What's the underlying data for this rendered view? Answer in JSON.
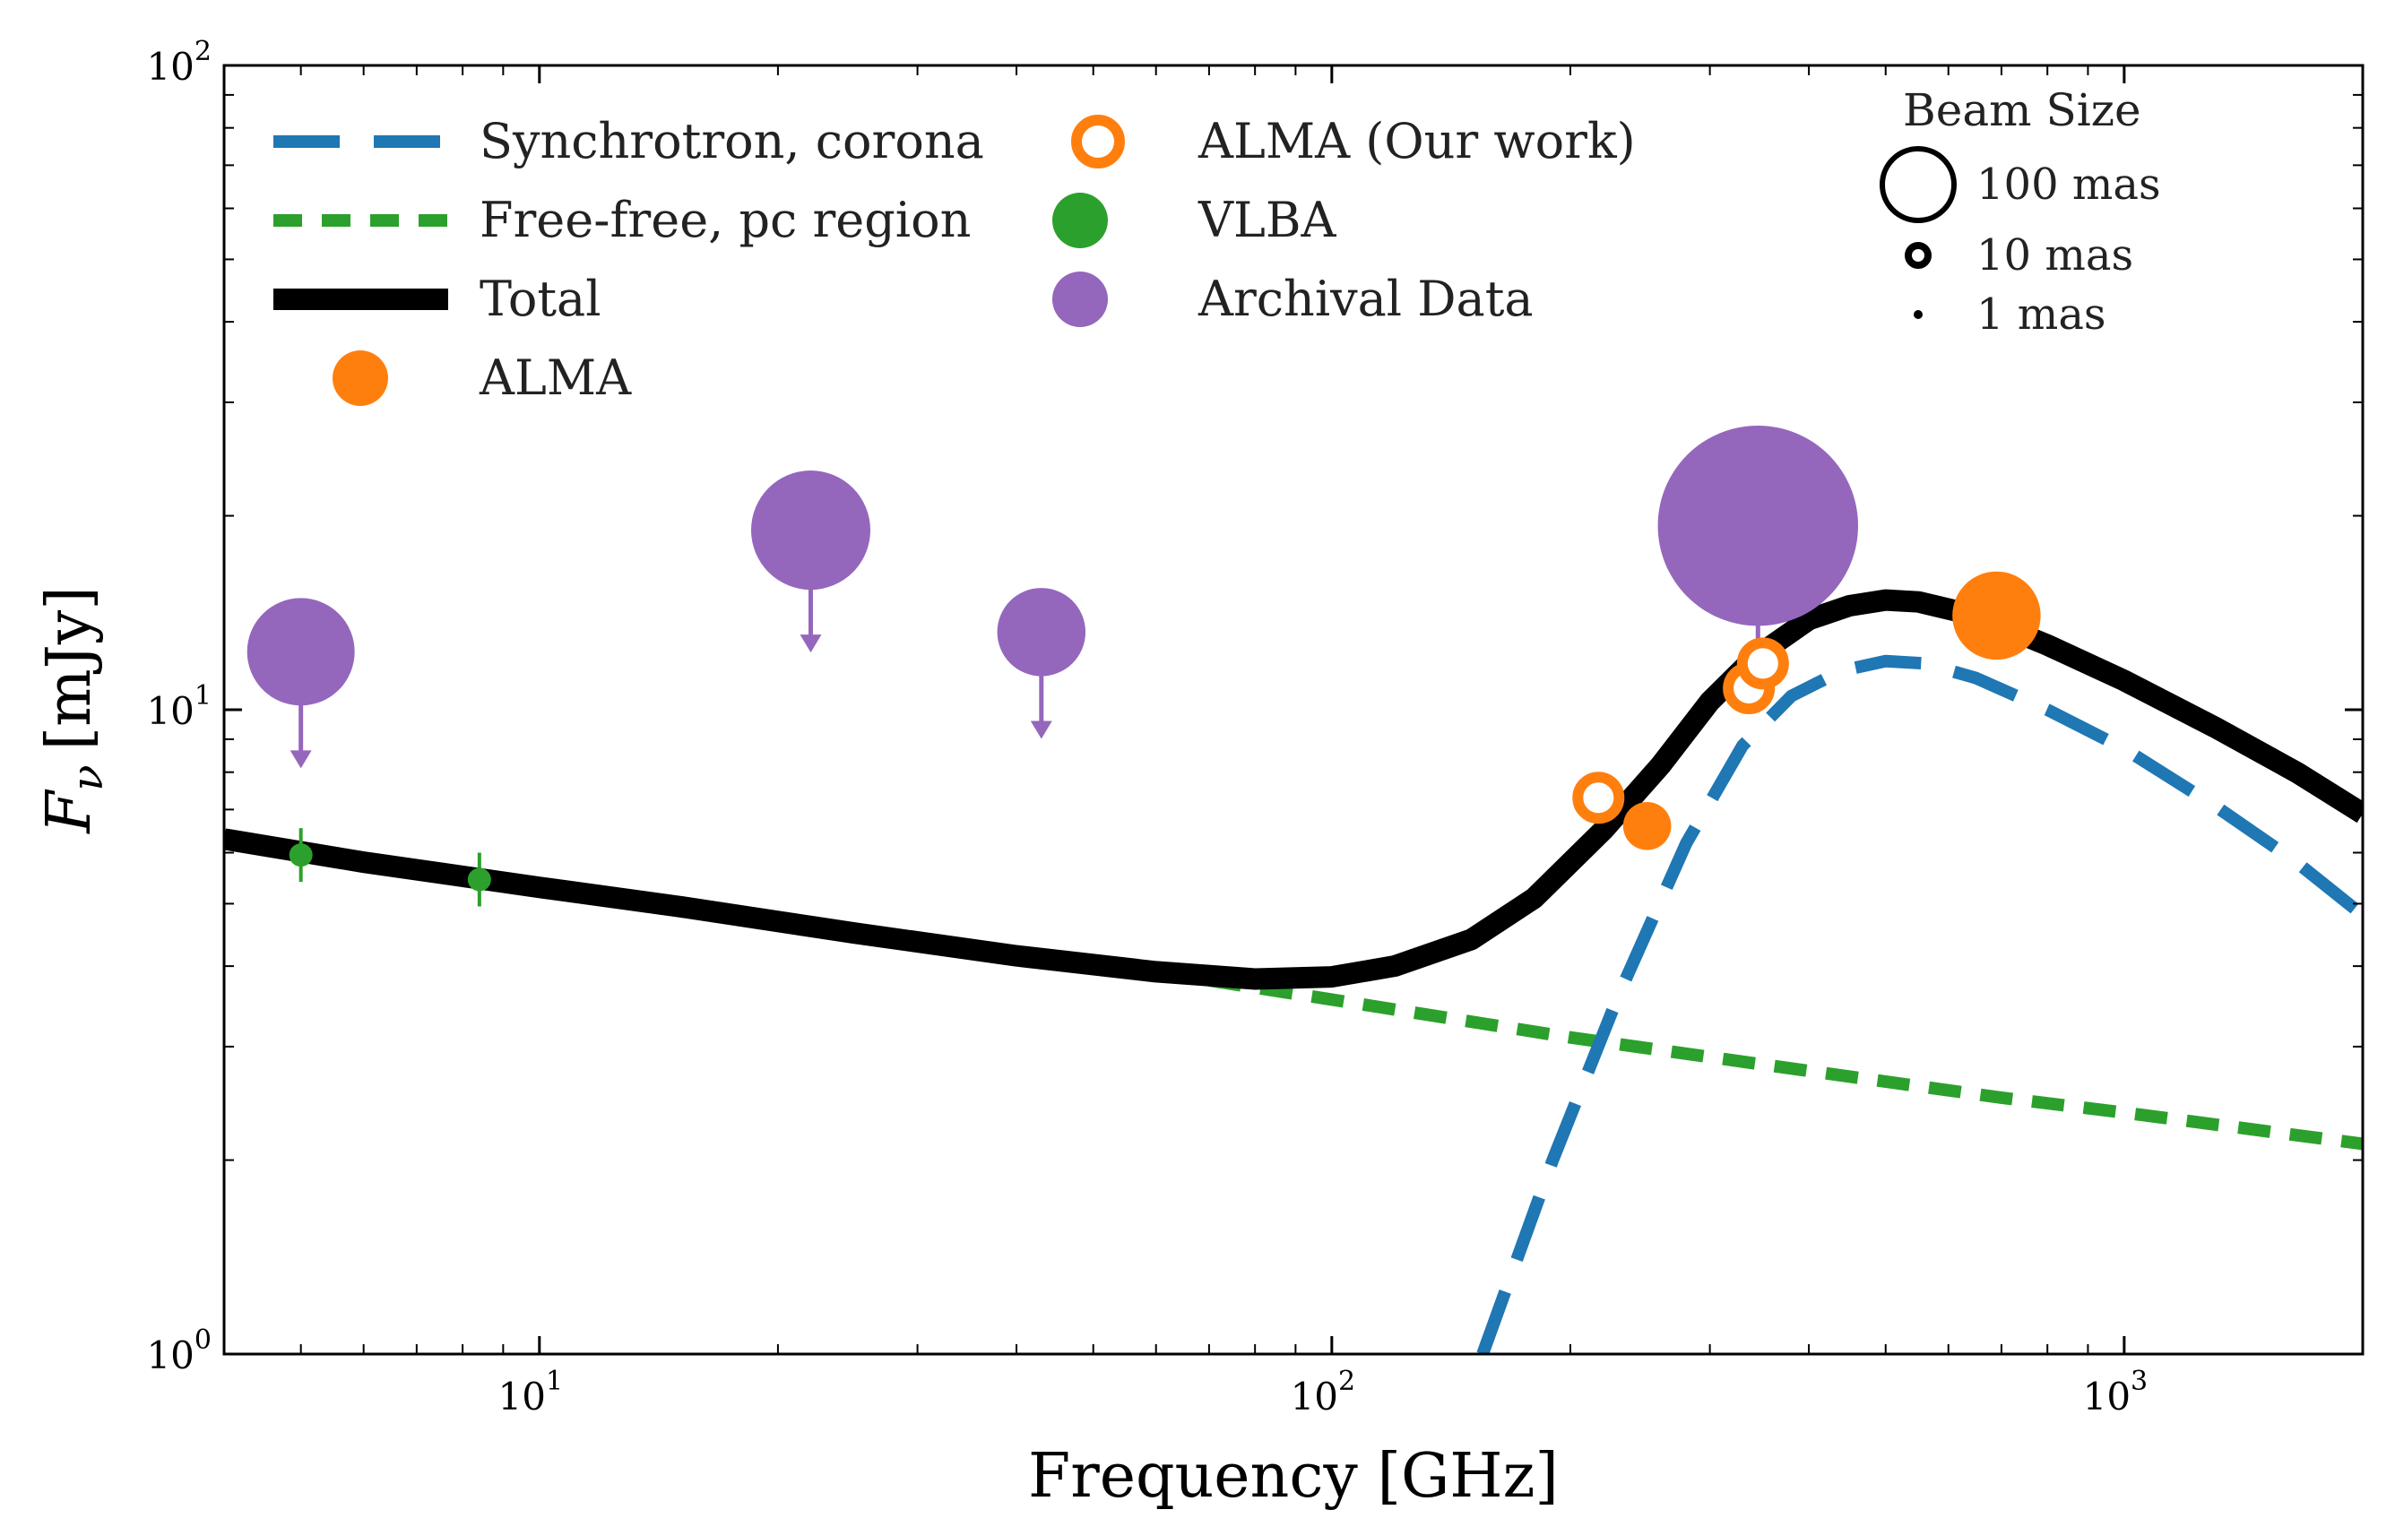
{
  "chart_data": {
    "type": "line",
    "title": "",
    "xlabel": "Frequency [GHz]",
    "ylabel_symbol": "F",
    "ylabel_subscript": "ν",
    "ylabel_unit": "[mJy]",
    "x_scale": "log",
    "y_scale": "log",
    "xlim": [
      4,
      2000
    ],
    "ylim": [
      1,
      100
    ],
    "x_ticks": [
      {
        "base": "10",
        "exp": "1",
        "value": 10
      },
      {
        "base": "10",
        "exp": "2",
        "value": 100
      },
      {
        "base": "10",
        "exp": "3",
        "value": 1000
      }
    ],
    "y_ticks": [
      {
        "base": "10",
        "exp": "0",
        "value": 1
      },
      {
        "base": "10",
        "exp": "1",
        "value": 10
      },
      {
        "base": "10",
        "exp": "2",
        "value": 100
      }
    ],
    "grid": false,
    "legend_placement": "top-left",
    "series": [
      {
        "name": "Synchrotron, corona",
        "kind": "line",
        "style": "dashed",
        "color": "#1f77b4",
        "x": [
          155,
          190,
          230,
          280,
          330,
          380,
          440,
          500,
          560,
          650,
          800,
          1000,
          1300,
          1650,
          2000
        ],
        "y": [
          1.0,
          2.0,
          3.6,
          6.2,
          8.8,
          10.5,
          11.5,
          11.9,
          11.8,
          11.2,
          10.0,
          8.7,
          7.1,
          5.8,
          4.8
        ]
      },
      {
        "name": "Free-free, pc region",
        "kind": "line",
        "style": "dotted",
        "color": "#2ca02c",
        "x": [
          70,
          100,
          200,
          400,
          700,
          1000,
          2000
        ],
        "y": [
          3.8,
          3.55,
          3.1,
          2.75,
          2.5,
          2.37,
          2.12
        ]
      },
      {
        "name": "Total",
        "kind": "line",
        "style": "solid",
        "color": "#000000",
        "x": [
          4,
          6,
          10,
          15,
          25,
          40,
          60,
          80,
          100,
          120,
          150,
          180,
          220,
          260,
          300,
          340,
          400,
          450,
          500,
          550,
          650,
          800,
          1000,
          1300,
          1650,
          2000
        ],
        "y": [
          6.3,
          5.8,
          5.3,
          4.95,
          4.5,
          4.15,
          3.92,
          3.82,
          3.85,
          4.0,
          4.4,
          5.1,
          6.5,
          8.2,
          10.3,
          12.0,
          13.8,
          14.5,
          14.8,
          14.7,
          14.0,
          12.6,
          11.1,
          9.4,
          8.0,
          6.9
        ]
      },
      {
        "name": "ALMA",
        "kind": "scatter",
        "marker": "filled",
        "color": "#ff7f0e",
        "points": [
          {
            "x": 250,
            "y": 6.6,
            "beam_mas": 15
          },
          {
            "x": 690,
            "y": 14.0,
            "beam_mas": 40
          }
        ]
      },
      {
        "name": "ALMA (Our work)",
        "kind": "scatter",
        "marker": "open",
        "color": "#ff7f0e",
        "points": [
          {
            "x": 217,
            "y": 7.3,
            "beam_mas": 35
          },
          {
            "x": 336,
            "y": 10.8,
            "beam_mas": 35
          },
          {
            "x": 350,
            "y": 11.8,
            "beam_mas": 35
          }
        ]
      },
      {
        "name": "VLBA",
        "kind": "scatter",
        "marker": "filled",
        "color": "#2ca02c",
        "points": [
          {
            "x": 5,
            "y": 5.95,
            "beam_mas": 3
          },
          {
            "x": 8.4,
            "y": 5.45,
            "beam_mas": 3
          }
        ]
      },
      {
        "name": "Archival Data",
        "kind": "scatter",
        "marker": "filled",
        "color": "#9467bd",
        "upper_limit": true,
        "points": [
          {
            "x": 5,
            "y": 12.3,
            "beam_mas": 55
          },
          {
            "x": 22,
            "y": 19.0,
            "beam_mas": 65
          },
          {
            "x": 43,
            "y": 13.2,
            "beam_mas": 40
          },
          {
            "x": 345,
            "y": 19.3,
            "beam_mas": 150
          }
        ]
      }
    ],
    "beam_size_legend": {
      "title": "Beam Size",
      "entries": [
        {
          "label": "100 mas",
          "beam_mas": 100
        },
        {
          "label": "10 mas",
          "beam_mas": 10
        },
        {
          "label": "1 mas",
          "beam_mas": 1
        }
      ]
    }
  }
}
